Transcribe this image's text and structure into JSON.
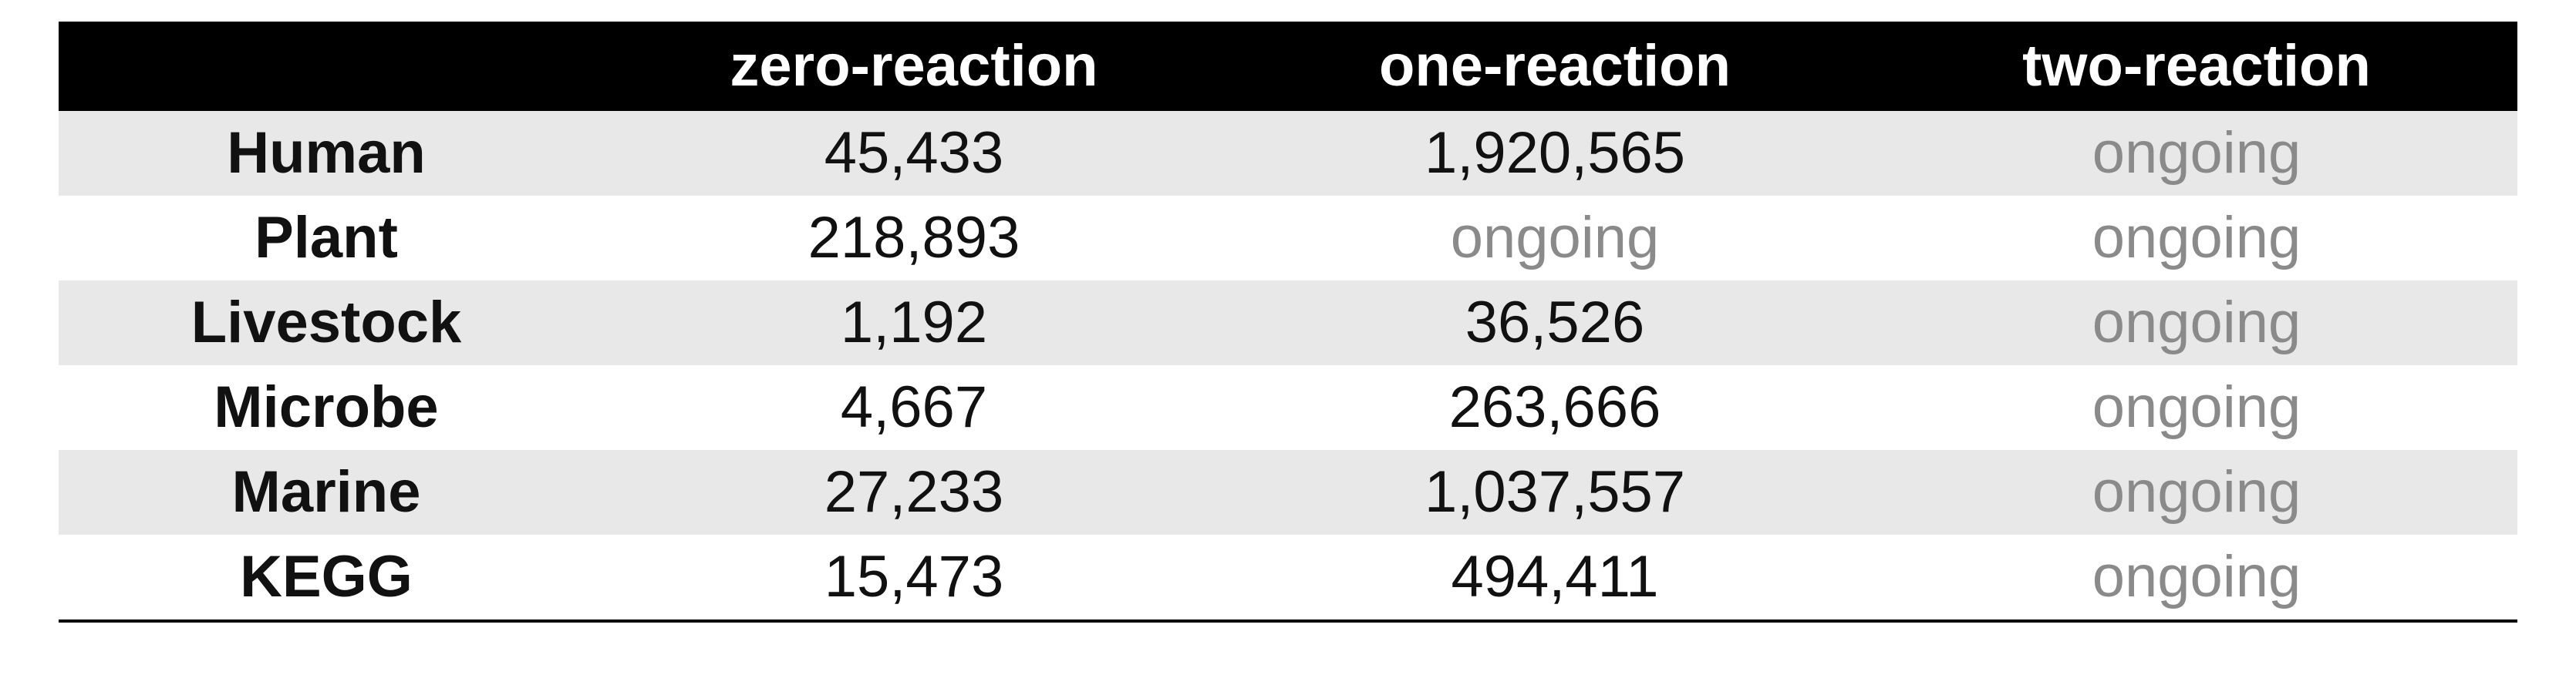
{
  "table": {
    "headers": [
      "",
      "zero-reaction",
      "one-reaction",
      "two-reaction"
    ],
    "rows": [
      {
        "label": "Human",
        "cells": [
          "45,433",
          "1,920,565",
          "ongoing"
        ]
      },
      {
        "label": "Plant",
        "cells": [
          "218,893",
          "ongoing",
          "ongoing"
        ]
      },
      {
        "label": "Livestock",
        "cells": [
          "1,192",
          "36,526",
          "ongoing"
        ]
      },
      {
        "label": "Microbe",
        "cells": [
          "4,667",
          "263,666",
          "ongoing"
        ]
      },
      {
        "label": "Marine",
        "cells": [
          "27,233",
          "1,037,557",
          "ongoing"
        ]
      },
      {
        "label": "KEGG",
        "cells": [
          "15,473",
          "494,411",
          "ongoing"
        ]
      }
    ]
  },
  "colors": {
    "header_bg": "#000000",
    "header_text": "#ffffff",
    "stripe": "#e8e8e8",
    "ongoing_text": "#8a8a8a"
  }
}
